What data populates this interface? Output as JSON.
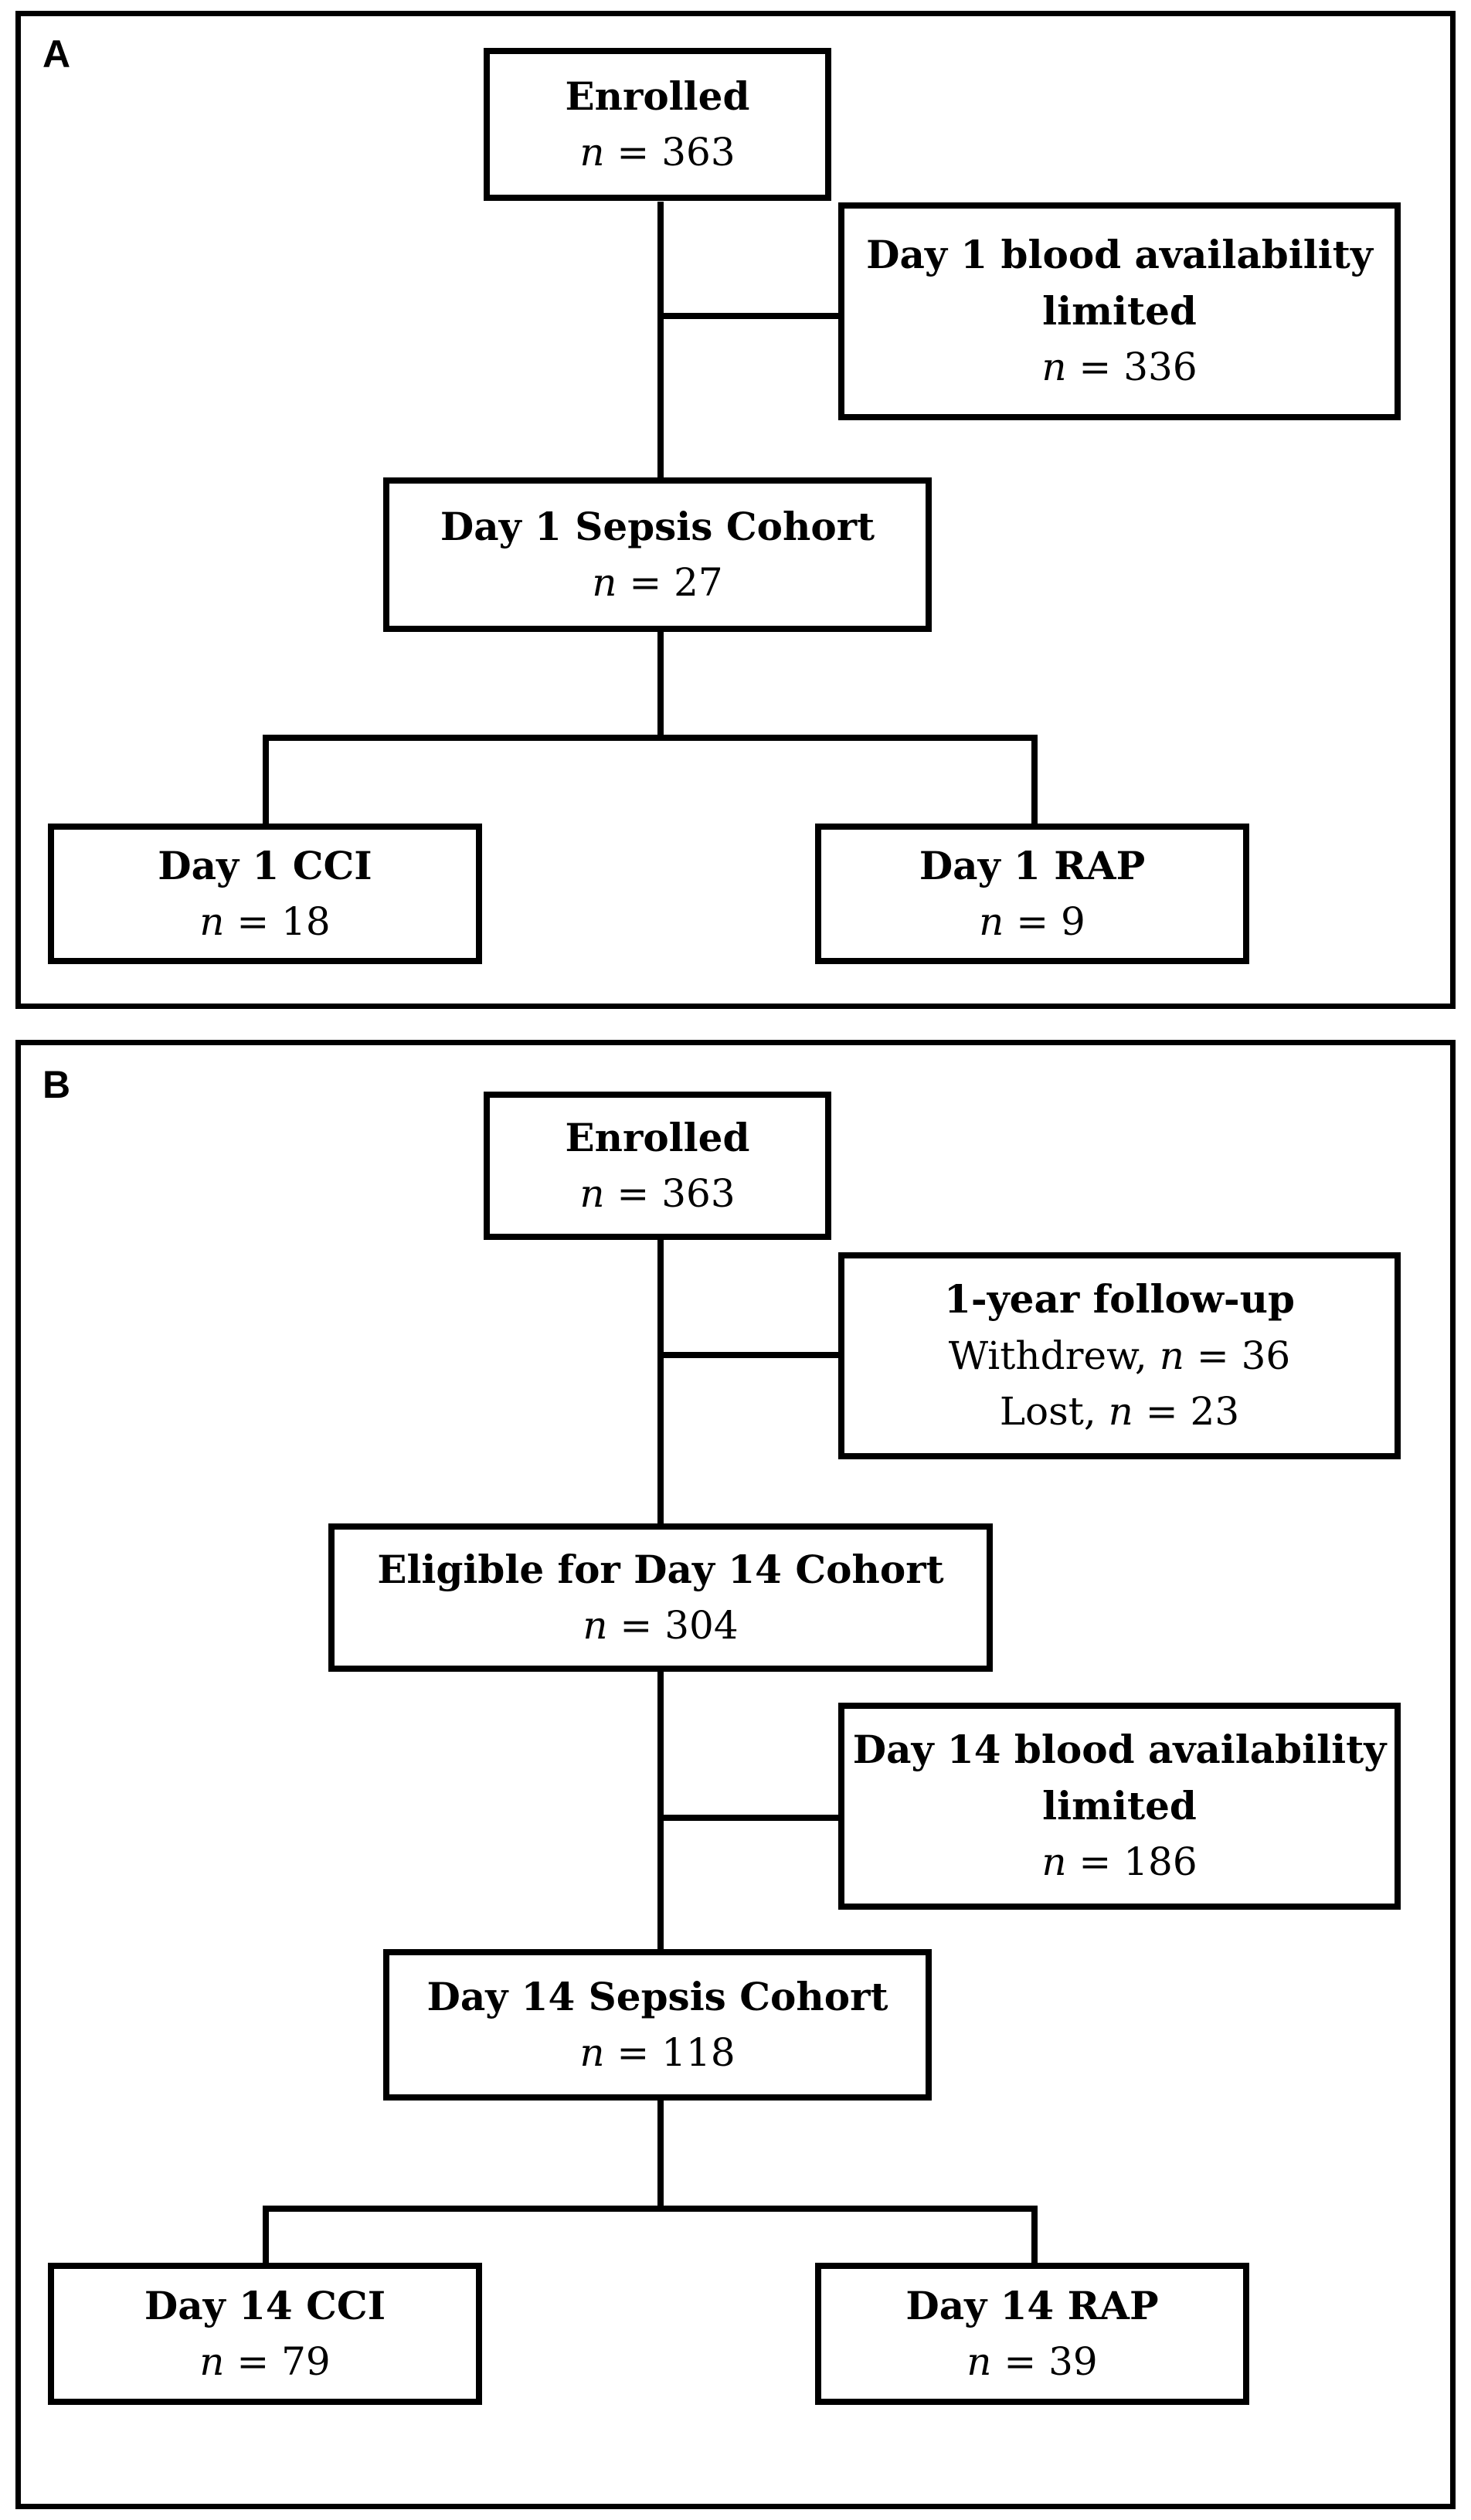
{
  "figure": {
    "ink_color": "#000000",
    "paper_color": "#ffffff",
    "panels": [
      {
        "label": "A",
        "boxes": {
          "enrolled": {
            "title": "Enrolled",
            "stats": [
              {
                "prefix": "",
                "value": "363"
              }
            ]
          },
          "exclusion": {
            "title": "Day 1 blood availability limited",
            "stats": [
              {
                "prefix": "",
                "value": "336"
              }
            ]
          },
          "cohort": {
            "title": "Day 1 Sepsis Cohort",
            "stats": [
              {
                "prefix": "",
                "value": "27"
              }
            ]
          },
          "cci": {
            "title": "Day 1 CCI",
            "stats": [
              {
                "prefix": "",
                "value": "18"
              }
            ]
          },
          "rap": {
            "title": "Day 1 RAP",
            "stats": [
              {
                "prefix": "",
                "value": "9"
              }
            ]
          }
        }
      },
      {
        "label": "B",
        "boxes": {
          "enrolled": {
            "title": "Enrolled",
            "stats": [
              {
                "prefix": "",
                "value": "363"
              }
            ]
          },
          "followup": {
            "title": "1-year follow-up",
            "stats": [
              {
                "prefix": "Withdrew, ",
                "value": "36"
              },
              {
                "prefix": "Lost, ",
                "value": "23"
              }
            ]
          },
          "eligible": {
            "title": "Eligible for Day 14 Cohort",
            "stats": [
              {
                "prefix": "",
                "value": "304"
              }
            ]
          },
          "exclusion": {
            "title": "Day 14 blood availability limited",
            "stats": [
              {
                "prefix": "",
                "value": "186"
              }
            ]
          },
          "cohort": {
            "title": "Day 14 Sepsis Cohort",
            "stats": [
              {
                "prefix": "",
                "value": "118"
              }
            ]
          },
          "cci": {
            "title": "Day 14 CCI",
            "stats": [
              {
                "prefix": "",
                "value": "79"
              }
            ]
          },
          "rap": {
            "title": "Day 14 RAP",
            "stats": [
              {
                "prefix": "",
                "value": "39"
              }
            ]
          }
        }
      }
    ]
  }
}
